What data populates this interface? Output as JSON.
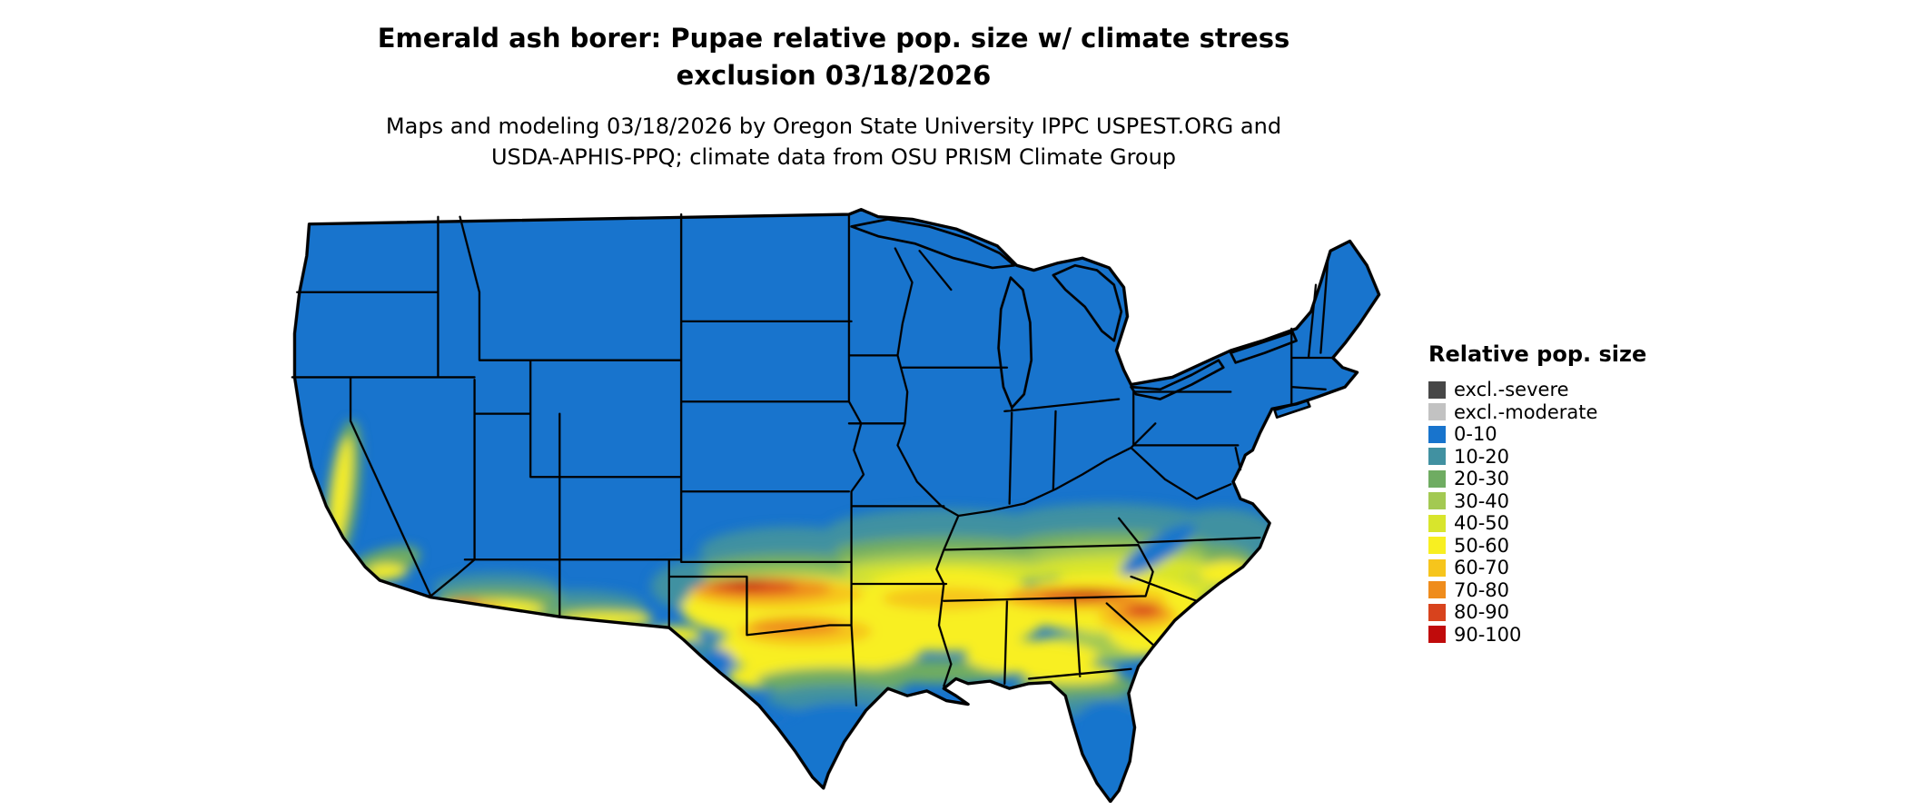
{
  "title": {
    "line1": "Emerald ash borer: Pupae relative pop. size w/ climate stress",
    "line2": "exclusion 03/18/2026"
  },
  "subtitle": {
    "line1": "Maps and modeling 03/18/2026 by Oregon State University IPPC USPEST.ORG and",
    "line2": "USDA-APHIS-PPQ; climate data from OSU PRISM Climate Group"
  },
  "legend": {
    "title": "Relative pop. size",
    "items": [
      {
        "key": "excl_severe",
        "label": "excl.-severe"
      },
      {
        "key": "excl_moderate",
        "label": "excl.-moderate"
      },
      {
        "key": "b0",
        "label": "0-10"
      },
      {
        "key": "b10",
        "label": "10-20"
      },
      {
        "key": "b20",
        "label": "20-30"
      },
      {
        "key": "b30",
        "label": "30-40"
      },
      {
        "key": "b40",
        "label": "40-50"
      },
      {
        "key": "b50",
        "label": "50-60"
      },
      {
        "key": "b60",
        "label": "60-70"
      },
      {
        "key": "b70",
        "label": "70-80"
      },
      {
        "key": "b80",
        "label": "80-90"
      },
      {
        "key": "b90",
        "label": "90-100"
      }
    ]
  },
  "palette": {
    "excl_severe": "#474747",
    "excl_moderate": "#c2c2c2",
    "b0": "#1874cd",
    "b10": "#4191a1",
    "b20": "#6fac62",
    "b30": "#a3c952",
    "b40": "#d8e52c",
    "b50": "#f8ef21",
    "b60": "#f6c51c",
    "b70": "#ef8c1c",
    "b80": "#d8431d",
    "b90": "#c00b0b"
  }
}
